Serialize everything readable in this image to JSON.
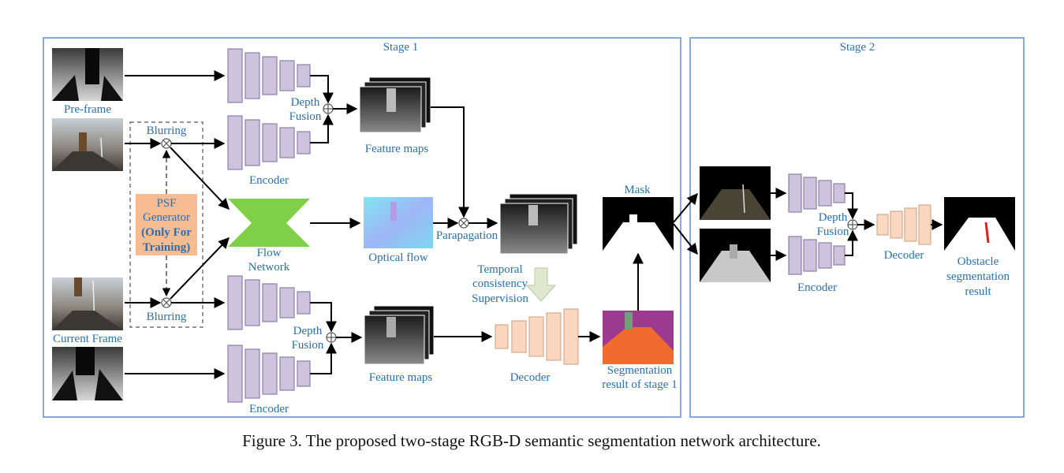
{
  "stage1": {
    "title": "Stage 1"
  },
  "stage2": {
    "title": "Stage 2"
  },
  "inputs": {
    "pre_frame": "Pre-frame",
    "current_frame": "Current Frame"
  },
  "blurring_top": "Blurring",
  "blurring_bottom": "Blurring",
  "psf": {
    "line1": "PSF",
    "line2": "Generator",
    "line3": "(Only For",
    "line4": "Training)"
  },
  "encoder_top": "Encoder",
  "encoder_bottom": "Encoder",
  "encoder_stage2": "Encoder",
  "depth_fusion_top": {
    "line1": "Depth",
    "line2": "Fusion"
  },
  "depth_fusion_bottom": {
    "line1": "Depth",
    "line2": "Fusion"
  },
  "depth_fusion_stage2": {
    "line1": "Depth",
    "line2": "Fusion"
  },
  "feature_maps_top": "Feature maps",
  "feature_maps_bottom": "Feature maps",
  "flow_network": {
    "line1": "Flow",
    "line2": "Network"
  },
  "optical_flow": "Optical flow",
  "propagation": "Parapagation",
  "temporal": {
    "line1": "Temporal",
    "line2": "consistency",
    "line3": "Supervision"
  },
  "decoder_stage1": "Decoder",
  "decoder_stage2": "Decoder",
  "segmentation_stage1": {
    "line1": "Segmentation",
    "line2": "result of stage 1"
  },
  "mask": "Mask",
  "obstacle_result": {
    "line1": "Obstacle",
    "line2": "segmentation",
    "line3": "result"
  },
  "caption": "Figure 3. The proposed two-stage RGB-D semantic segmentation network architecture.",
  "colors": {
    "frame_border": "#5b8fd0",
    "label": "#2a6fae",
    "encoder_fill": "#cdc3dd",
    "decoder_fill": "#fbd7bf",
    "flow_network": "#7fd046",
    "psf_box": "#f7bc92",
    "seg_purple": "#9b3a8e",
    "seg_orange": "#f26b2e"
  }
}
